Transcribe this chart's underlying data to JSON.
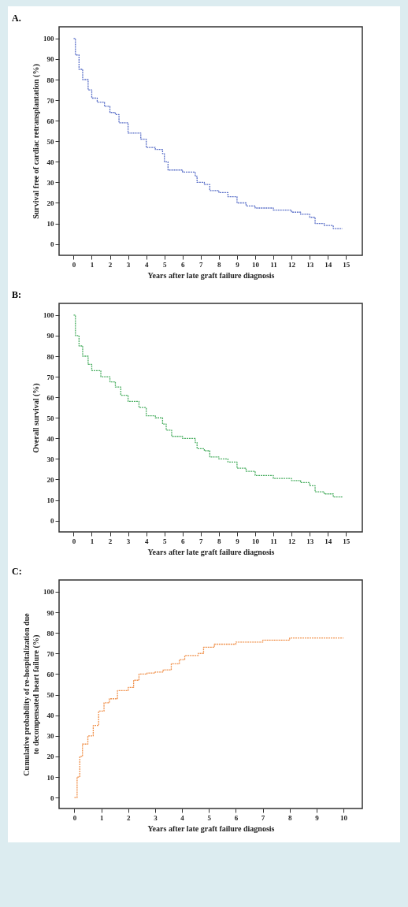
{
  "chart_data": [
    {
      "type": "step",
      "title": "A.",
      "xlabel": "Years after late graft failure diagnosis",
      "ylabel": "Survival free of cardiac retransplantation (%)",
      "line_style": "dashed",
      "xlim": [
        -0.8,
        15.9
      ],
      "ylim": [
        -5.5,
        105.7
      ],
      "xticks": [
        0,
        1,
        2,
        3,
        4,
        5,
        6,
        7,
        8,
        9,
        10,
        11,
        12,
        13,
        14,
        15
      ],
      "yticks": [
        0,
        10,
        20,
        30,
        40,
        50,
        60,
        70,
        80,
        90,
        100
      ],
      "x": [
        0,
        0.1,
        0.3,
        0.5,
        0.8,
        1,
        1.3,
        1.7,
        2,
        2.3,
        2.5,
        3,
        3.3,
        3.7,
        4,
        4.5,
        4.9,
        5,
        5.2,
        6,
        6.7,
        6.8,
        7.2,
        7.5,
        8,
        8.5,
        9,
        9.5,
        10,
        11,
        12,
        12.5,
        13,
        13.3,
        13.8,
        14.3,
        14.8
      ],
      "series": [
        {
          "color": "#5a6fc8",
          "values": [
            100,
            92,
            85,
            80,
            75,
            71,
            69,
            67,
            64,
            63,
            59,
            54,
            54,
            51,
            47,
            46,
            44,
            40,
            36,
            35,
            33,
            30,
            29,
            26,
            25,
            23,
            20,
            18.5,
            17.5,
            16.5,
            15.5,
            14.5,
            13,
            10,
            9,
            7.5,
            7.5
          ]
        }
      ]
    },
    {
      "type": "step",
      "title": "B:",
      "xlabel": "Years after late graft failure diagnosis",
      "ylabel": "Overall survival (%)",
      "line_style": "dashed",
      "xlim": [
        -0.8,
        15.9
      ],
      "ylim": [
        -5.5,
        105.7
      ],
      "xticks": [
        0,
        1,
        2,
        3,
        4,
        5,
        6,
        7,
        8,
        9,
        10,
        11,
        12,
        13,
        14,
        15
      ],
      "yticks": [
        0,
        10,
        20,
        30,
        40,
        50,
        60,
        70,
        80,
        90,
        100
      ],
      "x": [
        0,
        0.1,
        0.3,
        0.5,
        0.8,
        1,
        1.5,
        2,
        2.3,
        2.6,
        3,
        3.3,
        3.6,
        4,
        4.5,
        4.9,
        5.1,
        5.4,
        6,
        6.7,
        6.8,
        7.2,
        7.5,
        8,
        8.5,
        9,
        9.5,
        10,
        11,
        12,
        12.5,
        13,
        13.3,
        13.8,
        14.3,
        14.8
      ],
      "series": [
        {
          "color": "#4caf63",
          "values": [
            100,
            90,
            85,
            80,
            76,
            73,
            70,
            67.5,
            65,
            61,
            58,
            58,
            55,
            51,
            50,
            47,
            44,
            41,
            40,
            38,
            35,
            34,
            31,
            30,
            28.5,
            25.5,
            24,
            22,
            20.5,
            19.5,
            18.5,
            17,
            14,
            13,
            11.5,
            11.5
          ]
        }
      ]
    },
    {
      "type": "step",
      "title": "C:",
      "xlabel": "Years after late graft failure diagnosis",
      "ylabel": "Cumulative probability of re-hospitalization due to decompensated heart failure (%)",
      "line_style": "dashed",
      "xlim": [
        -0.57,
        10.7
      ],
      "ylim": [
        -5.3,
        105.7
      ],
      "xticks": [
        0,
        1,
        2,
        3,
        4,
        5,
        6,
        7,
        8,
        9,
        10
      ],
      "yticks": [
        0,
        10,
        20,
        30,
        40,
        50,
        60,
        70,
        80,
        90,
        100
      ],
      "x": [
        0,
        0.1,
        0.2,
        0.3,
        0.5,
        0.7,
        0.9,
        1.1,
        1.3,
        1.6,
        2,
        2.2,
        2.4,
        2.7,
        3,
        3.3,
        3.6,
        3.9,
        4.1,
        4.6,
        4.8,
        5.2,
        6,
        7,
        8,
        10
      ],
      "series": [
        {
          "color": "#f0904a",
          "values": [
            0,
            10,
            20,
            26,
            30,
            35,
            42,
            46,
            48,
            52,
            53.5,
            57,
            60,
            60.5,
            61,
            62,
            65,
            67,
            69,
            70,
            73,
            74.5,
            75.5,
            76.5,
            77.5,
            77.5
          ]
        }
      ]
    }
  ]
}
